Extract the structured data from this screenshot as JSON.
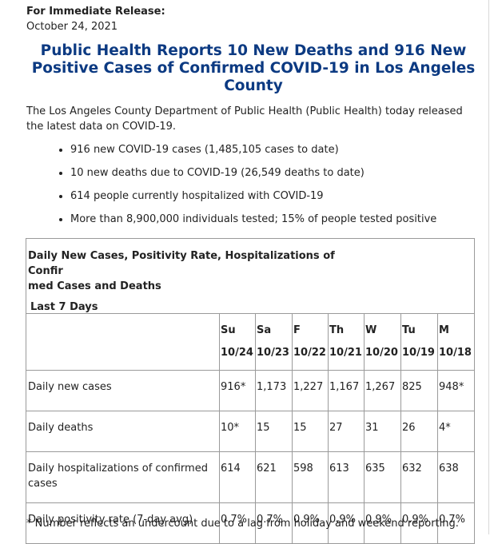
{
  "release_label": "For Immediate Release:",
  "release_date": "October 24, 2021",
  "headline": "Public Health Reports 10 New Deaths and 916 New Positive Cases of Confirmed COVID-19 in Los Angeles County",
  "intro": "The Los Angeles County Department of Public Health (Public Health) today released the latest data on COVID-19.",
  "bullets": [
    "916 new COVID-19 cases (1,485,105 cases to date)",
    "10 new deaths due to COVID-19 (26,549 deaths to date)",
    "614 people currently hospitalized with COVID-19",
    "More than 8,900,000 individuals tested; 15% of people tested positive"
  ],
  "table": {
    "title_line1": "Daily New Cases, Positivity Rate, Hospitalizations of Confir",
    "title_line2": "med Cases and Deaths",
    "subtitle": "Last 7 Days",
    "days": [
      "Su",
      "Sa",
      "F",
      "Th",
      "W",
      "Tu",
      "M"
    ],
    "dates": [
      "10/24",
      "10/23",
      "10/22",
      "10/21",
      "10/20",
      "10/19",
      "10/18"
    ],
    "rows": [
      {
        "label": "Daily new cases",
        "values": [
          "916*",
          "1,173",
          "1,227",
          "1,167",
          "1,267",
          "825",
          "948*"
        ]
      },
      {
        "label": "Daily deaths",
        "values": [
          "10*",
          "15",
          "15",
          "27",
          "31",
          "26",
          "4*"
        ]
      },
      {
        "label": "Daily hospitalizations of confirmed cases",
        "values": [
          "614",
          "621",
          "598",
          "613",
          "635",
          "632",
          "638"
        ]
      },
      {
        "label": "Daily positivity rate (7-day avg)",
        "values": [
          "0.7%",
          "0.7%",
          "0.9%",
          "0.9%",
          "0.9%",
          "0.9%",
          "0.7%"
        ]
      }
    ]
  },
  "footnote": "* Number reflects an undercount due to a lag from holiday and weekend reporting.",
  "colors": {
    "headline": "#0c3a82",
    "border": "#9a9a9a"
  }
}
